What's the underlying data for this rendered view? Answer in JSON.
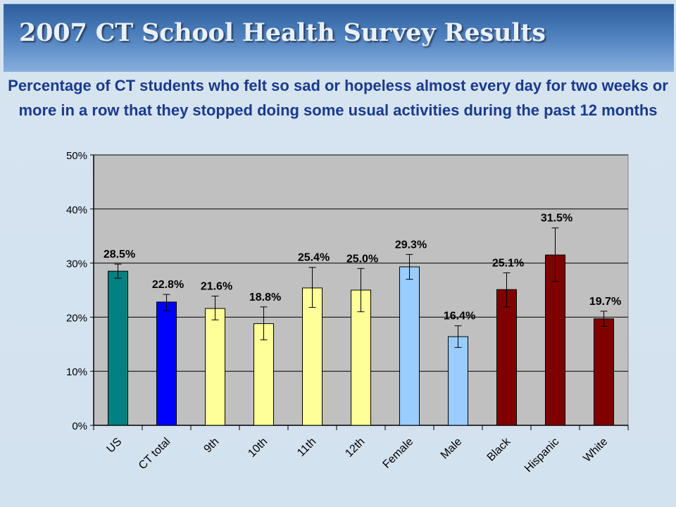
{
  "header": {
    "title": "2007 CT School Health Survey Results"
  },
  "chart_data": {
    "type": "bar",
    "title": "Percentage of CT students who felt so sad or hopeless almost every day for two weeks or more in a row that they stopped doing some usual activities during the past 12 months",
    "xlabel": "",
    "ylabel": "",
    "ylim": [
      0,
      50
    ],
    "yticks": [
      "0%",
      "10%",
      "20%",
      "30%",
      "40%",
      "50%"
    ],
    "grid": true,
    "categories": [
      "US",
      "CT total",
      "9th",
      "10th",
      "11th",
      "12th",
      "Female",
      "Male",
      "Black",
      "Hispanic",
      "White"
    ],
    "values": [
      28.5,
      22.8,
      21.6,
      18.8,
      25.4,
      25.0,
      29.3,
      16.4,
      25.1,
      31.5,
      19.7
    ],
    "data_labels": [
      "28.5%",
      "22.8%",
      "21.6%",
      "18.8%",
      "25.4%",
      "25.0%",
      "29.3%",
      "16.4%",
      "25.1%",
      "31.5%",
      "19.7%"
    ],
    "error_low": [
      27.2,
      21.2,
      19.5,
      15.8,
      21.8,
      21.0,
      27.0,
      14.4,
      21.9,
      26.6,
      18.3
    ],
    "error_high": [
      29.8,
      24.2,
      23.9,
      21.9,
      29.2,
      29.0,
      31.6,
      18.4,
      28.2,
      36.5,
      21.1
    ],
    "bar_colors": [
      "#008080",
      "#0000ff",
      "#ffff99",
      "#ffff99",
      "#ffff99",
      "#ffff99",
      "#99ccff",
      "#99ccff",
      "#800000",
      "#800000",
      "#800000"
    ],
    "plot_background": "#c0c0c0"
  }
}
